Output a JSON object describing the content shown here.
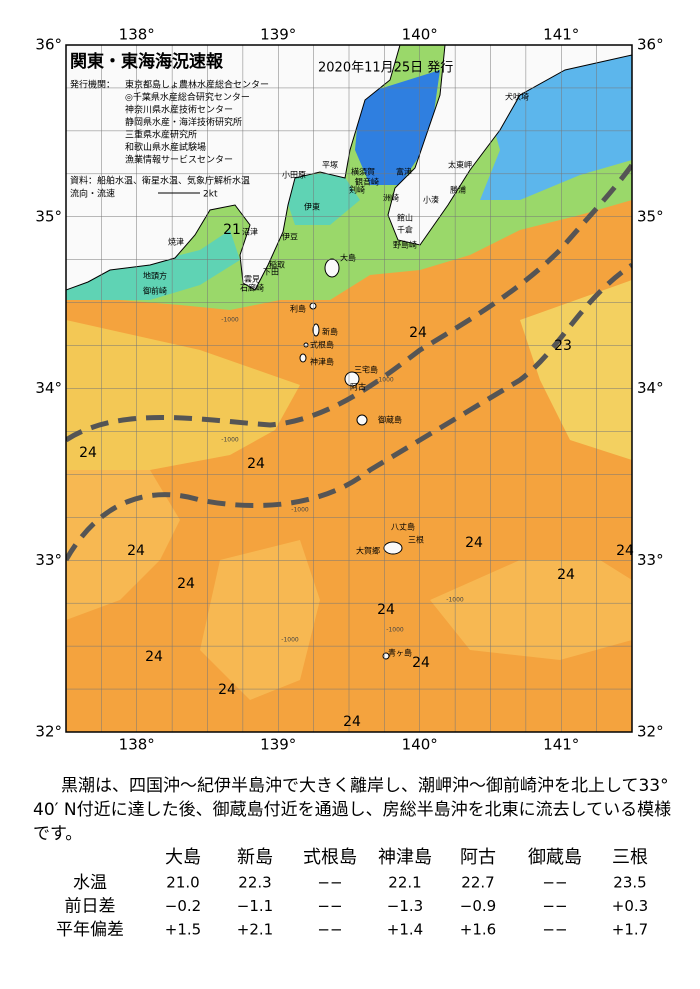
{
  "header": {
    "title": "関東・東海海況速報",
    "date": "2020年11月25日 発行"
  },
  "issuers": {
    "label": "発行機関：",
    "items": [
      "東京都島しょ農林水産総合センター",
      "◎千葉県水産総合研究センター",
      "神奈川県水産技術センター",
      "静岡県水産・海洋技術研究所",
      "三重県水産研究所",
      "和歌山県水産試験場",
      "漁業情報サービスセンター"
    ]
  },
  "sources": "資料：船舶水温、衛星水温、気象庁解析水温",
  "legend": {
    "label": "流向・流速",
    "speed": "2kt"
  },
  "axes": {
    "lon": [
      "138°",
      "139°",
      "140°",
      "141°"
    ],
    "lat": [
      "36°",
      "35°",
      "34°",
      "33°",
      "32°"
    ]
  },
  "places": [
    "犬吠埼",
    "太東岬",
    "勝浦",
    "小湊",
    "館山",
    "千倉",
    "野島崎",
    "横須賀",
    "平塚",
    "観音崎",
    "剣崎",
    "富津",
    "洲崎",
    "小田原",
    "伊東",
    "沼津",
    "伊豆",
    "稲取",
    "下田",
    "雲見",
    "石廊崎",
    "焼津",
    "地頭方",
    "御前崎",
    "大島",
    "利島",
    "新島",
    "式根島",
    "神津島",
    "三宅島",
    "阿古",
    "御蔵島",
    "八丈島",
    "三根",
    "大賀郷",
    "青ヶ島"
  ],
  "contour_labels": [
    "21",
    "24",
    "23",
    "24",
    "24",
    "24",
    "24",
    "24",
    "24",
    "24",
    "24",
    "24",
    "24",
    "24",
    "24"
  ],
  "depth_labels": [
    "-1000",
    "-1000",
    "-1000",
    "-1000",
    "-1000",
    "-1000",
    "-1000"
  ],
  "summary": "黒潮は、四国沖～紀伊半島沖で大きく離岸し、潮岬沖～御前崎沖を北上して33° 40′ N付近に達した後、御蔵島付近を通過し、房総半島沖を北東に流去している模様です。",
  "table": {
    "columns": [
      "大島",
      "新島",
      "式根島",
      "神津島",
      "阿古",
      "御蔵島",
      "三根"
    ],
    "rows": [
      {
        "label": "水温",
        "cells": [
          "21.0",
          "22.3",
          "−−",
          "22.1",
          "22.7",
          "−−",
          "23.5"
        ]
      },
      {
        "label": "前日差",
        "cells": [
          "−0.2",
          "−1.1",
          "−−",
          "−1.3",
          "−0.9",
          "−−",
          "+0.3"
        ]
      },
      {
        "label": "平年偏差",
        "cells": [
          "+1.5",
          "+2.1",
          "−−",
          "+1.4",
          "+1.6",
          "−−",
          "+1.7"
        ]
      }
    ]
  }
}
